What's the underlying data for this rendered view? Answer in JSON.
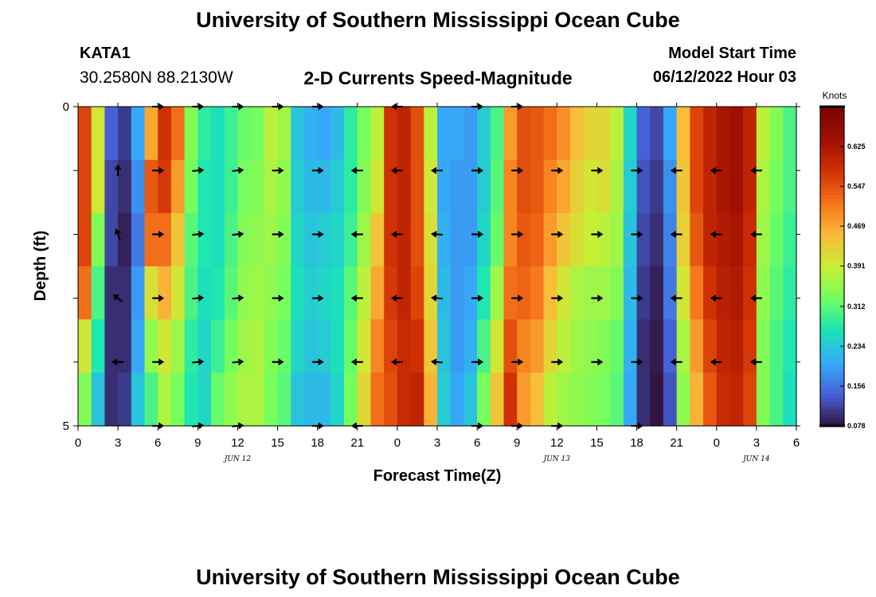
{
  "header": {
    "title": "University of Southern Mississippi Ocean Cube",
    "station": "KATA1",
    "coords": "30.2580N  88.2130W",
    "subtitle": "2-D Currents Speed-Magnitude",
    "start_label": "Model Start Time",
    "start_value": "06/12/2022 Hour 03"
  },
  "footer": {
    "title": "University of Southern Mississippi Ocean Cube"
  },
  "chart_data": {
    "type": "heatmap",
    "title": "2-D Currents Speed-Magnitude",
    "xlabel": "Forecast Time(Z)",
    "ylabel": "Depth (ft)",
    "xlim": [
      0,
      54
    ],
    "ylim": [
      0,
      5
    ],
    "x_tick_values": [
      0,
      3,
      6,
      9,
      12,
      15,
      18,
      21,
      24,
      27,
      30,
      33,
      36,
      39,
      42,
      45,
      48,
      51,
      54
    ],
    "x_tick_labels": [
      "0",
      "3",
      "6",
      "9",
      "12",
      "15",
      "18",
      "21",
      "0",
      "3",
      "6",
      "9",
      "12",
      "15",
      "18",
      "21",
      "0",
      "3",
      "6"
    ],
    "y_tick_values": [
      0,
      5
    ],
    "y_tick_labels": [
      "0",
      "5"
    ],
    "date_labels": [
      {
        "text": "JUN 12",
        "x": 12
      },
      {
        "text": "JUN 13",
        "x": 36
      },
      {
        "text": "JUN 14",
        "x": 51
      }
    ],
    "colorbar": {
      "title": "Knots",
      "min": 0.078,
      "max": 0.703,
      "tick_labels": [
        "0.078",
        "0.156",
        "0.234",
        "0.312",
        "0.391",
        "0.469",
        "0.547",
        "0.625"
      ],
      "tick_values": [
        0.078,
        0.156,
        0.234,
        0.312,
        0.391,
        0.469,
        0.547,
        0.625
      ]
    },
    "speed_columns": [
      {
        "x": 0,
        "v": [
          0.56,
          0.56,
          0.56,
          0.52,
          0.4,
          0.34
        ]
      },
      {
        "x": 1,
        "v": [
          0.4,
          0.4,
          0.34,
          0.3,
          0.27,
          0.23
        ]
      },
      {
        "x": 2,
        "v": [
          0.14,
          0.12,
          0.12,
          0.1,
          0.1,
          0.1
        ]
      },
      {
        "x": 3,
        "v": [
          0.11,
          0.1,
          0.09,
          0.1,
          0.1,
          0.11
        ]
      },
      {
        "x": 4,
        "v": [
          0.2,
          0.18,
          0.16,
          0.19,
          0.2,
          0.23
        ]
      },
      {
        "x": 5,
        "v": [
          0.47,
          0.54,
          0.52,
          0.41,
          0.35,
          0.3
        ]
      },
      {
        "x": 6,
        "v": [
          0.58,
          0.57,
          0.52,
          0.46,
          0.4,
          0.37
        ]
      },
      {
        "x": 7,
        "v": [
          0.52,
          0.48,
          0.44,
          0.4,
          0.36,
          0.33
        ]
      },
      {
        "x": 8,
        "v": [
          0.34,
          0.33,
          0.31,
          0.3,
          0.28,
          0.27
        ]
      },
      {
        "x": 9,
        "v": [
          0.28,
          0.27,
          0.27,
          0.26,
          0.25,
          0.25
        ]
      },
      {
        "x": 10,
        "v": [
          0.26,
          0.26,
          0.26,
          0.27,
          0.29,
          0.32
        ]
      },
      {
        "x": 11,
        "v": [
          0.29,
          0.29,
          0.3,
          0.31,
          0.33,
          0.35
        ]
      },
      {
        "x": 12,
        "v": [
          0.32,
          0.33,
          0.34,
          0.35,
          0.36,
          0.37
        ]
      },
      {
        "x": 13,
        "v": [
          0.33,
          0.34,
          0.35,
          0.36,
          0.37,
          0.37
        ]
      },
      {
        "x": 14,
        "v": [
          0.38,
          0.37,
          0.36,
          0.35,
          0.34,
          0.33
        ]
      },
      {
        "x": 15,
        "v": [
          0.36,
          0.35,
          0.34,
          0.33,
          0.32,
          0.31
        ]
      },
      {
        "x": 16,
        "v": [
          0.23,
          0.24,
          0.25,
          0.26,
          0.25,
          0.23
        ]
      },
      {
        "x": 17,
        "v": [
          0.21,
          0.22,
          0.23,
          0.24,
          0.23,
          0.22
        ]
      },
      {
        "x": 18,
        "v": [
          0.2,
          0.22,
          0.24,
          0.25,
          0.24,
          0.22
        ]
      },
      {
        "x": 19,
        "v": [
          0.22,
          0.24,
          0.25,
          0.26,
          0.26,
          0.25
        ]
      },
      {
        "x": 20,
        "v": [
          0.28,
          0.28,
          0.29,
          0.31,
          0.32,
          0.33
        ]
      },
      {
        "x": 21,
        "v": [
          0.33,
          0.34,
          0.36,
          0.38,
          0.4,
          0.42
        ]
      },
      {
        "x": 22,
        "v": [
          0.38,
          0.4,
          0.44,
          0.47,
          0.5,
          0.52
        ]
      },
      {
        "x": 23,
        "v": [
          0.58,
          0.58,
          0.58,
          0.57,
          0.56,
          0.55
        ]
      },
      {
        "x": 24,
        "v": [
          0.6,
          0.6,
          0.6,
          0.6,
          0.59,
          0.59
        ]
      },
      {
        "x": 25,
        "v": [
          0.55,
          0.55,
          0.55,
          0.56,
          0.58,
          0.6
        ]
      },
      {
        "x": 26,
        "v": [
          0.38,
          0.4,
          0.41,
          0.42,
          0.44,
          0.46
        ]
      },
      {
        "x": 27,
        "v": [
          0.2,
          0.2,
          0.21,
          0.22,
          0.23,
          0.24
        ]
      },
      {
        "x": 28,
        "v": [
          0.2,
          0.19,
          0.19,
          0.19,
          0.19,
          0.2
        ]
      },
      {
        "x": 29,
        "v": [
          0.19,
          0.19,
          0.19,
          0.2,
          0.21,
          0.23
        ]
      },
      {
        "x": 30,
        "v": [
          0.24,
          0.24,
          0.25,
          0.27,
          0.3,
          0.33
        ]
      },
      {
        "x": 31,
        "v": [
          0.3,
          0.31,
          0.32,
          0.36,
          0.4,
          0.44
        ]
      },
      {
        "x": 32,
        "v": [
          0.48,
          0.5,
          0.5,
          0.52,
          0.55,
          0.58
        ]
      },
      {
        "x": 33,
        "v": [
          0.55,
          0.55,
          0.54,
          0.53,
          0.5,
          0.48
        ]
      },
      {
        "x": 34,
        "v": [
          0.54,
          0.54,
          0.53,
          0.51,
          0.48,
          0.45
        ]
      },
      {
        "x": 35,
        "v": [
          0.52,
          0.5,
          0.48,
          0.45,
          0.42,
          0.38
        ]
      },
      {
        "x": 36,
        "v": [
          0.49,
          0.47,
          0.44,
          0.4,
          0.38,
          0.36
        ]
      },
      {
        "x": 37,
        "v": [
          0.45,
          0.43,
          0.41,
          0.37,
          0.36,
          0.35
        ]
      },
      {
        "x": 38,
        "v": [
          0.42,
          0.4,
          0.39,
          0.36,
          0.35,
          0.34
        ]
      },
      {
        "x": 39,
        "v": [
          0.42,
          0.41,
          0.38,
          0.36,
          0.34,
          0.33
        ]
      },
      {
        "x": 40,
        "v": [
          0.38,
          0.37,
          0.36,
          0.34,
          0.32,
          0.31
        ]
      },
      {
        "x": 41,
        "v": [
          0.25,
          0.24,
          0.23,
          0.22,
          0.21,
          0.2
        ]
      },
      {
        "x": 42,
        "v": [
          0.14,
          0.13,
          0.12,
          0.11,
          0.1,
          0.1
        ]
      },
      {
        "x": 43,
        "v": [
          0.12,
          0.11,
          0.1,
          0.09,
          0.085,
          0.08
        ]
      },
      {
        "x": 44,
        "v": [
          0.2,
          0.18,
          0.17,
          0.16,
          0.14,
          0.13
        ]
      },
      {
        "x": 45,
        "v": [
          0.45,
          0.44,
          0.43,
          0.4,
          0.37,
          0.35
        ]
      },
      {
        "x": 46,
        "v": [
          0.56,
          0.56,
          0.54,
          0.51,
          0.48,
          0.46
        ]
      },
      {
        "x": 47,
        "v": [
          0.6,
          0.6,
          0.6,
          0.58,
          0.56,
          0.54
        ]
      },
      {
        "x": 48,
        "v": [
          0.63,
          0.63,
          0.62,
          0.61,
          0.6,
          0.59
        ]
      },
      {
        "x": 49,
        "v": [
          0.64,
          0.64,
          0.63,
          0.62,
          0.61,
          0.6
        ]
      },
      {
        "x": 50,
        "v": [
          0.6,
          0.6,
          0.59,
          0.58,
          0.57,
          0.56
        ]
      },
      {
        "x": 51,
        "v": [
          0.38,
          0.37,
          0.36,
          0.35,
          0.34,
          0.34
        ]
      },
      {
        "x": 52,
        "v": [
          0.34,
          0.33,
          0.32,
          0.31,
          0.3,
          0.3
        ]
      },
      {
        "x": 53,
        "v": [
          0.3,
          0.3,
          0.29,
          0.28,
          0.27,
          0.26
        ]
      }
    ],
    "vector_depths": [
      0,
      1,
      2,
      3,
      4,
      5
    ],
    "vectors": [
      {
        "x": 3,
        "angles_deg": [
          null,
          90,
          110,
          140,
          180,
          null
        ]
      },
      {
        "x": 6,
        "angles_deg": [
          0,
          0,
          0,
          0,
          0,
          0
        ]
      },
      {
        "x": 9,
        "angles_deg": [
          0,
          5,
          5,
          5,
          5,
          5
        ]
      },
      {
        "x": 12,
        "angles_deg": [
          0,
          5,
          5,
          5,
          5,
          5
        ]
      },
      {
        "x": 15,
        "angles_deg": [
          0,
          0,
          0,
          0,
          0,
          null
        ]
      },
      {
        "x": 18,
        "angles_deg": [
          0,
          0,
          0,
          0,
          0,
          0
        ]
      },
      {
        "x": 21,
        "angles_deg": [
          null,
          180,
          180,
          180,
          180,
          180
        ]
      },
      {
        "x": 24,
        "angles_deg": [
          180,
          180,
          180,
          180,
          180,
          null
        ]
      },
      {
        "x": 27,
        "angles_deg": [
          null,
          180,
          175,
          175,
          175,
          null
        ]
      },
      {
        "x": 30,
        "angles_deg": [
          0,
          0,
          0,
          0,
          0,
          0
        ]
      },
      {
        "x": 33,
        "angles_deg": [
          0,
          0,
          0,
          0,
          0,
          0
        ]
      },
      {
        "x": 36,
        "angles_deg": [
          null,
          0,
          0,
          0,
          0,
          0
        ]
      },
      {
        "x": 39,
        "angles_deg": [
          null,
          0,
          0,
          0,
          0,
          null
        ]
      },
      {
        "x": 42,
        "angles_deg": [
          null,
          0,
          0,
          0,
          0,
          0
        ]
      },
      {
        "x": 45,
        "angles_deg": [
          null,
          180,
          180,
          180,
          180,
          null
        ]
      },
      {
        "x": 48,
        "angles_deg": [
          null,
          180,
          180,
          180,
          180,
          null
        ]
      },
      {
        "x": 51,
        "angles_deg": [
          null,
          180,
          180,
          180,
          180,
          null
        ]
      }
    ]
  }
}
